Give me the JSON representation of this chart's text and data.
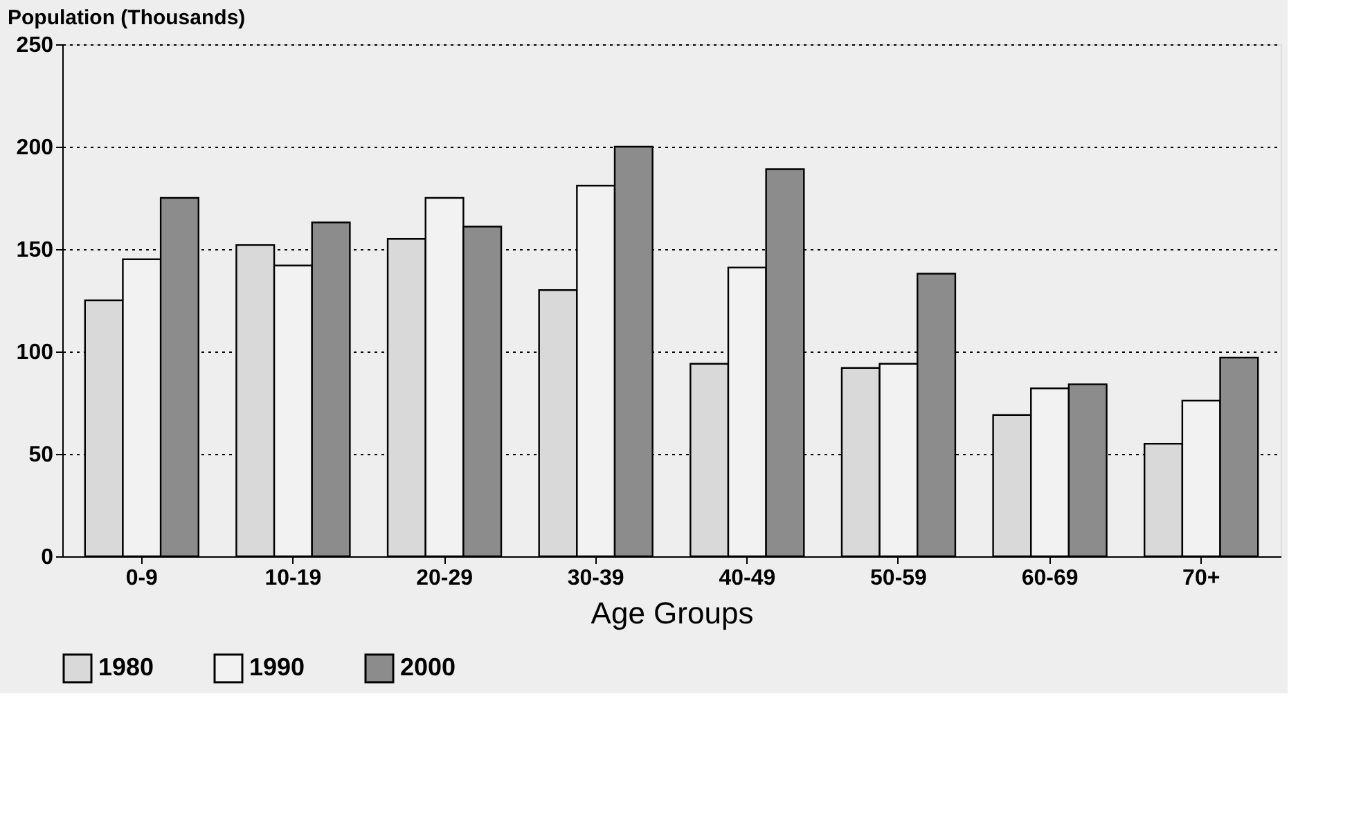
{
  "chart_data": {
    "type": "bar",
    "ylabel": "Population (Thousands)",
    "xlabel": "Age Groups",
    "categories": [
      "0-9",
      "10-19",
      "20-29",
      "30-39",
      "40-49",
      "50-59",
      "60-69",
      "70+"
    ],
    "series": [
      {
        "name": "1980",
        "color": "#d9d9d9",
        "values": [
          125,
          152,
          155,
          130,
          94,
          92,
          69,
          55
        ]
      },
      {
        "name": "1990",
        "color": "#f2f2f2",
        "values": [
          145,
          142,
          175,
          181,
          141,
          94,
          82,
          76
        ]
      },
      {
        "name": "2000",
        "color": "#8c8c8c",
        "values": [
          175,
          163,
          161,
          200,
          189,
          138,
          84,
          97
        ]
      }
    ],
    "ylim": [
      0,
      250
    ],
    "yticks": [
      0,
      50,
      100,
      150,
      200,
      250
    ],
    "grid": "y",
    "legend": "bottom"
  }
}
